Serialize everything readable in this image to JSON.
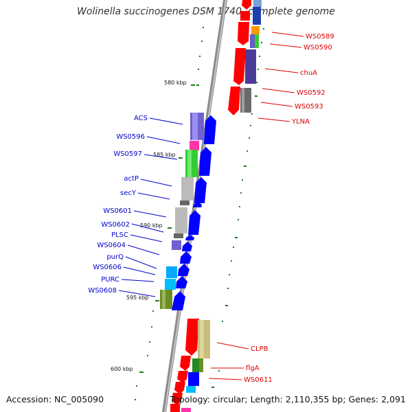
{
  "title": "Wolinella succinogenes DSM 1740, complete genome",
  "footer": {
    "accession": "Accession: NC_005090",
    "summary": "Topology: circular; Length: 2,110,355 bp; Genes: 2,091"
  },
  "colors": {
    "forward_label": "#0000cc",
    "reverse_label": "#dd0000",
    "backbone": "#888888",
    "tick": "#1a7a1a"
  },
  "scale_labels": [
    "580 kbp",
    "585 kbp",
    "590 kbp",
    "595 kbp",
    "600 kbp"
  ],
  "forward_genes": [
    "ACS",
    "WS0596",
    "WS0597",
    "actP",
    "secY",
    "WS0601",
    "WS0602",
    "PLSC",
    "WS0604",
    "purQ",
    "WS0606",
    "PURC",
    "WS0608"
  ],
  "reverse_genes": [
    "WS0589",
    "WS0590",
    "chuA",
    "WS0592",
    "WS0593",
    "YLNA",
    "CLPB",
    "flgA",
    "WS0611"
  ]
}
